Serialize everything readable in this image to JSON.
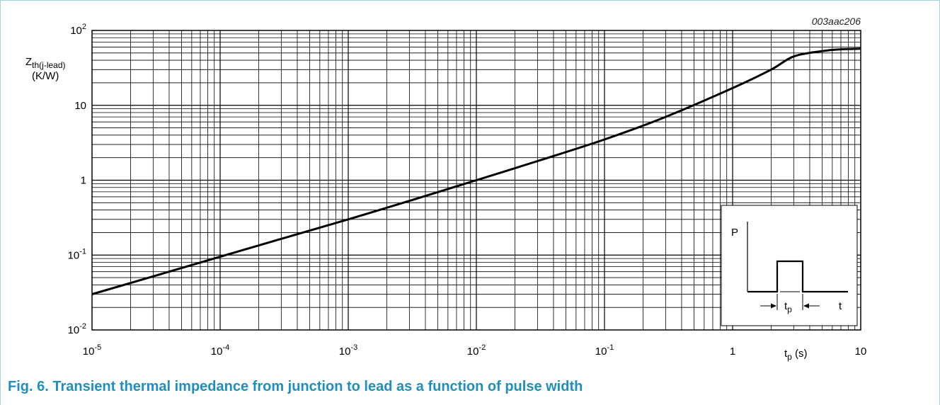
{
  "caption": "Fig. 6. Transient thermal impedance from junction to lead as a function of pulse width",
  "chart_data": {
    "type": "line",
    "code": "003aac206",
    "xlabel": {
      "main": "t",
      "sub": "p",
      "unit": " (s)"
    },
    "ylabel": {
      "main": "Z",
      "sub": "th(j-lead)",
      "unit": "(K/W)"
    },
    "xscale": "log",
    "yscale": "log",
    "xlim": [
      1e-05,
      10
    ],
    "ylim": [
      0.01,
      100
    ],
    "grid": true,
    "x_ticks": [
      {
        "value": 1e-05,
        "base": "10",
        "exp": "-5"
      },
      {
        "value": 0.0001,
        "base": "10",
        "exp": "-4"
      },
      {
        "value": 0.001,
        "base": "10",
        "exp": "-3"
      },
      {
        "value": 0.01,
        "base": "10",
        "exp": "-2"
      },
      {
        "value": 0.1,
        "base": "10",
        "exp": "-1"
      },
      {
        "value": 1,
        "base": "1",
        "exp": ""
      },
      {
        "value": 10,
        "base": "10",
        "exp": ""
      }
    ],
    "y_ticks": [
      {
        "value": 0.01,
        "base": "10",
        "exp": "-2"
      },
      {
        "value": 0.1,
        "base": "10",
        "exp": "-1"
      },
      {
        "value": 1,
        "base": "1",
        "exp": ""
      },
      {
        "value": 10,
        "base": "10",
        "exp": ""
      },
      {
        "value": 100,
        "base": "10",
        "exp": "2"
      }
    ],
    "series": [
      {
        "color": "#000000",
        "x": [
          1e-05,
          3e-05,
          0.0001,
          0.0003,
          0.001,
          0.003,
          0.01,
          0.03,
          0.1,
          0.3,
          1,
          2,
          3,
          5,
          7,
          10
        ],
        "y": [
          0.03,
          0.052,
          0.095,
          0.165,
          0.3,
          0.53,
          1.0,
          1.8,
          3.5,
          7.0,
          17,
          30,
          45,
          53,
          56,
          57
        ]
      }
    ],
    "inset": {
      "p_label": "P",
      "t_label": "t",
      "tp_main": "t",
      "tp_sub": "p"
    }
  }
}
